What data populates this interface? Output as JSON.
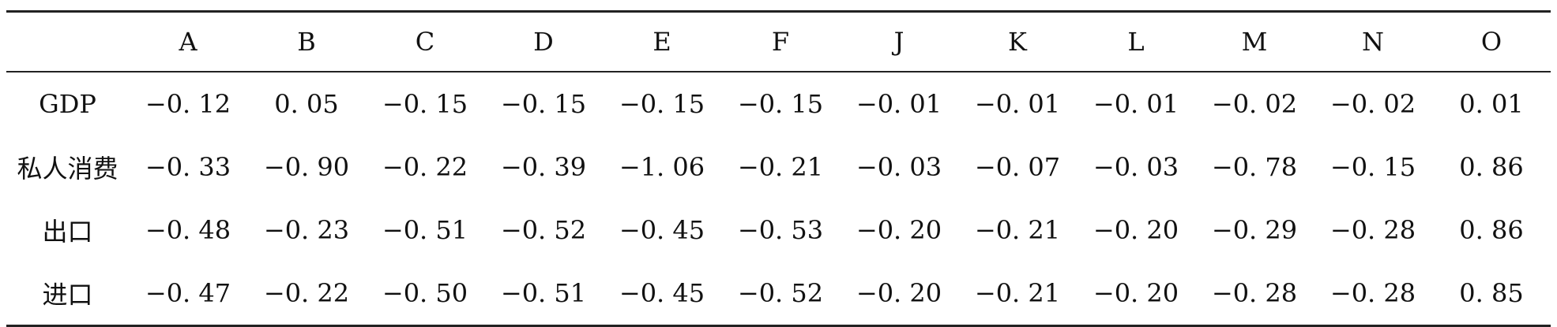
{
  "table": {
    "corner": "",
    "columns": [
      "A",
      "B",
      "C",
      "D",
      "E",
      "F",
      "J",
      "K",
      "L",
      "M",
      "N",
      "O"
    ],
    "rows": [
      {
        "label": "GDP",
        "values": [
          "−0. 12",
          "0. 05",
          "−0. 15",
          "−0. 15",
          "−0. 15",
          "−0. 15",
          "−0. 01",
          "−0. 01",
          "−0. 01",
          "−0. 02",
          "−0. 02",
          "0. 01"
        ]
      },
      {
        "label": "私人消费",
        "values": [
          "−0. 33",
          "−0. 90",
          "−0. 22",
          "−0. 39",
          "−1. 06",
          "−0. 21",
          "−0. 03",
          "−0. 07",
          "−0. 03",
          "−0. 78",
          "−0. 15",
          "0. 86"
        ]
      },
      {
        "label": "出口",
        "values": [
          "−0. 48",
          "−0. 23",
          "−0. 51",
          "−0. 52",
          "−0. 45",
          "−0. 53",
          "−0. 20",
          "−0. 21",
          "−0. 20",
          "−0. 29",
          "−0. 28",
          "0. 86"
        ]
      },
      {
        "label": "进口",
        "values": [
          "−0. 47",
          "−0. 22",
          "−0. 50",
          "−0. 51",
          "−0. 45",
          "−0. 52",
          "−0. 20",
          "−0. 21",
          "−0. 20",
          "−0. 28",
          "−0. 28",
          "0. 85"
        ]
      }
    ]
  }
}
